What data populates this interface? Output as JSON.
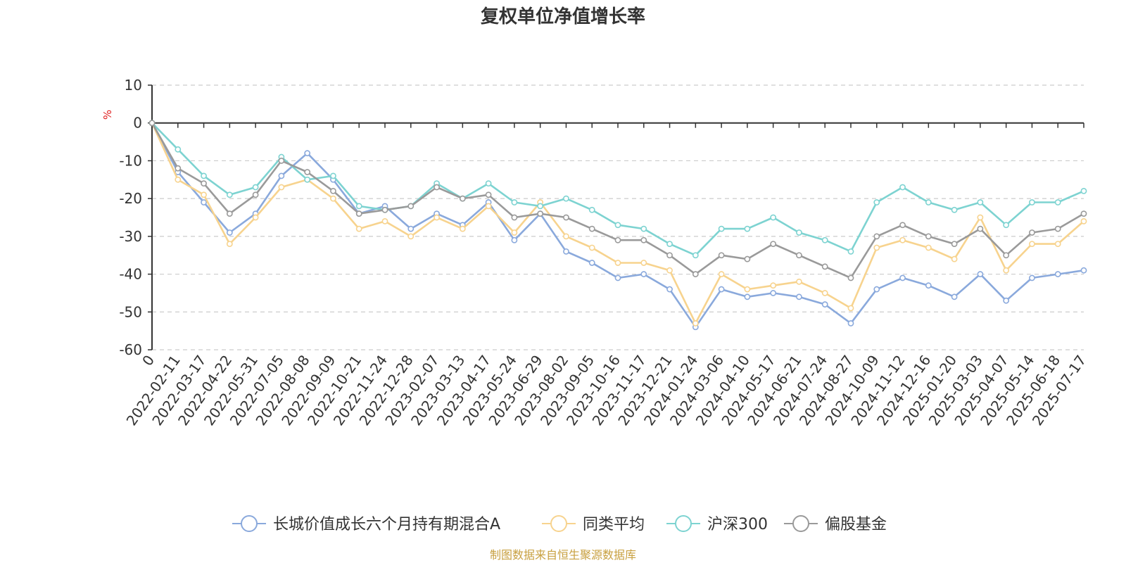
{
  "chart_data": {
    "type": "line",
    "title": "复权单位净值增长率",
    "ylabel": "%",
    "ylim": [
      -60,
      10
    ],
    "yticks": [
      10,
      0,
      -10,
      -20,
      -30,
      -40,
      -50,
      -60
    ],
    "grid": true,
    "legend_position": "bottom",
    "source": "制图数据来自恒生聚源数据库",
    "x": [
      "0",
      "2022-02-11",
      "2022-03-17",
      "2022-04-22",
      "2022-05-31",
      "2022-07-05",
      "2022-08-08",
      "2022-09-09",
      "2022-10-21",
      "2022-11-24",
      "2022-12-28",
      "2023-02-07",
      "2023-03-13",
      "2023-04-17",
      "2023-05-24",
      "2023-06-29",
      "2023-08-02",
      "2023-09-05",
      "2023-10-16",
      "2023-11-17",
      "2023-12-21",
      "2024-01-24",
      "2024-03-06",
      "2024-04-10",
      "2024-05-17",
      "2024-06-21",
      "2024-07-24",
      "2024-08-27",
      "2024-10-09",
      "2024-11-12",
      "2024-12-16",
      "2025-01-20",
      "2025-03-03",
      "2025-04-07",
      "2025-05-14",
      "2025-06-18",
      "2025-07-17"
    ],
    "series": [
      {
        "name": "长城价值成长六个月持有期混合A",
        "color": "#8aa9dc",
        "values": [
          0,
          -13,
          -21,
          -29,
          -24,
          -14,
          -8,
          -15,
          -24,
          -22,
          -28,
          -24,
          -27,
          -21,
          -31,
          -24,
          -34,
          -37,
          -41,
          -40,
          -44,
          -54,
          -44,
          -46,
          -45,
          -46,
          -48,
          -53,
          -44,
          -41,
          -43,
          -46,
          -40,
          -47,
          -41,
          -40,
          -39
        ]
      },
      {
        "name": "同类平均",
        "color": "#f7d38e",
        "values": [
          0,
          -15,
          -19,
          -32,
          -25,
          -17,
          -15,
          -20,
          -28,
          -26,
          -30,
          -25,
          -28,
          -22,
          -29,
          -21,
          -30,
          -33,
          -37,
          -37,
          -39,
          -53,
          -40,
          -44,
          -43,
          -42,
          -45,
          -49,
          -33,
          -31,
          -33,
          -36,
          -25,
          -39,
          -32,
          -32,
          -26
        ]
      },
      {
        "name": "沪深300",
        "color": "#7dd3d1",
        "values": [
          0,
          -7,
          -14,
          -19,
          -17,
          -9,
          -15,
          -14,
          -22,
          -23,
          -22,
          -16,
          -20,
          -16,
          -21,
          -22,
          -20,
          -23,
          -27,
          -28,
          -32,
          -35,
          -28,
          -28,
          -25,
          -29,
          -31,
          -34,
          -21,
          -17,
          -21,
          -23,
          -21,
          -27,
          -21,
          -21,
          -18
        ]
      },
      {
        "name": "偏股基金",
        "color": "#9a9a9a",
        "values": [
          0,
          -12,
          -16,
          -24,
          -19,
          -10,
          -13,
          -18,
          -24,
          -23,
          -22,
          -17,
          -20,
          -19,
          -25,
          -24,
          -25,
          -28,
          -31,
          -31,
          -35,
          -40,
          -35,
          -36,
          -32,
          -35,
          -38,
          -41,
          -30,
          -27,
          -30,
          -32,
          -28,
          -35,
          -29,
          -28,
          -24
        ]
      }
    ]
  }
}
